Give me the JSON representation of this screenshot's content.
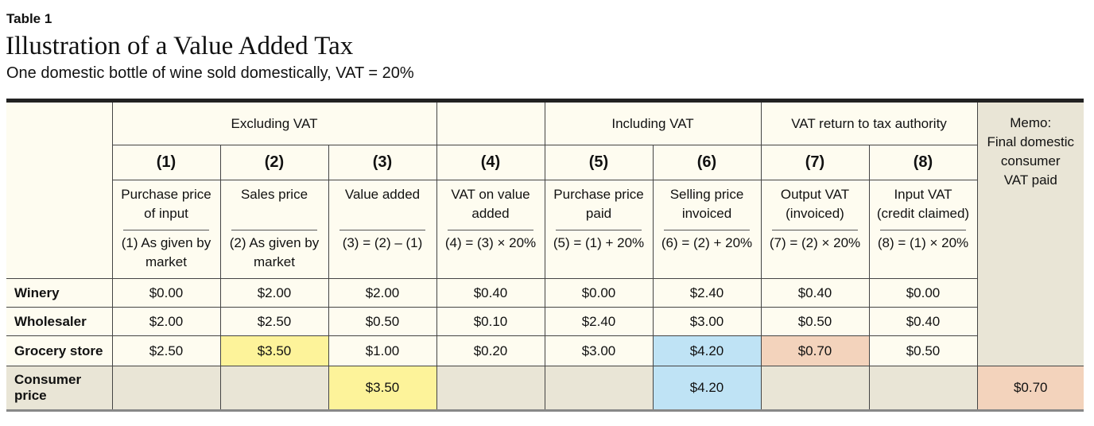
{
  "label": "Table 1",
  "title": "Illustration of a Value Added Tax",
  "subtitle": "One domestic bottle of wine sold domestically, VAT = 20%",
  "groups": {
    "excl": "Excluding VAT",
    "incl": "Including VAT",
    "ret": "VAT return to tax authority"
  },
  "memo": [
    "Memo:",
    "Final domestic",
    "consumer",
    "VAT paid"
  ],
  "columns": [
    {
      "num": "(1)",
      "desc": [
        "Purchase price",
        "of input"
      ],
      "formula": [
        "(1) As given by",
        "market"
      ]
    },
    {
      "num": "(2)",
      "desc": [
        "Sales price",
        ""
      ],
      "formula": [
        "(2) As given by",
        "market"
      ]
    },
    {
      "num": "(3)",
      "desc": [
        "Value added",
        ""
      ],
      "formula": [
        "(3) = (2) – (1)",
        ""
      ]
    },
    {
      "num": "(4)",
      "desc": [
        "VAT on value",
        "added"
      ],
      "formula": [
        "(4) = (3) × 20%",
        ""
      ]
    },
    {
      "num": "(5)",
      "desc": [
        "Purchase price",
        "paid"
      ],
      "formula": [
        "(5) = (1) + 20%",
        ""
      ]
    },
    {
      "num": "(6)",
      "desc": [
        "Selling price",
        "invoiced"
      ],
      "formula": [
        "(6) = (2) + 20%",
        ""
      ]
    },
    {
      "num": "(7)",
      "desc": [
        "Output VAT",
        "(invoiced)"
      ],
      "formula": [
        "(7) = (2) × 20%",
        ""
      ]
    },
    {
      "num": "(8)",
      "desc": [
        "Input VAT",
        "(credit claimed)"
      ],
      "formula": [
        "(8) = (1) × 20%",
        ""
      ]
    }
  ],
  "rows": [
    {
      "label": "Winery",
      "values": [
        "$0.00",
        "$2.00",
        "$2.00",
        "$0.40",
        "$0.00",
        "$2.40",
        "$0.40",
        "$0.00"
      ]
    },
    {
      "label": "Wholesaler",
      "values": [
        "$2.00",
        "$2.50",
        "$0.50",
        "$0.10",
        "$2.40",
        "$3.00",
        "$0.50",
        "$0.40"
      ]
    },
    {
      "label": "Grocery store",
      "values": [
        "$2.50",
        "$3.50",
        "$1.00",
        "$0.20",
        "$3.00",
        "$4.20",
        "$0.70",
        "$0.50"
      ]
    }
  ],
  "consumer": {
    "label": [
      "Consumer",
      "price"
    ],
    "col3": "$3.50",
    "col6": "$4.20",
    "memo": "$0.70"
  },
  "colors": {
    "yellow": "#fdf39a",
    "blue": "#bfe3f5",
    "salmon": "#f3d3bc",
    "cream": "#fefcf0",
    "grey": "#e9e5d6"
  }
}
